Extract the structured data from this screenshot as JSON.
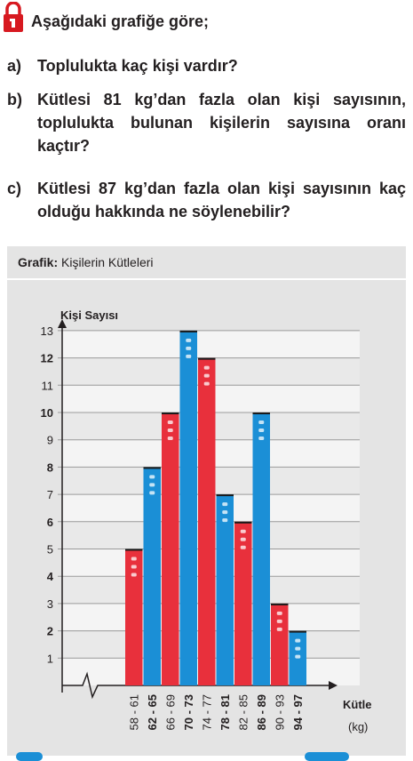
{
  "header": {
    "title": "Aşağıdaki grafiğe göre;",
    "icon": "lock-icon"
  },
  "questions": [
    {
      "label": "a)",
      "text": "Toplulukta kaç kişi vardır?"
    },
    {
      "label": "b)",
      "text": "Kütlesi 81 kg’dan fazla olan kişi sayısının, toplulukta bulunan kişilerin sayısına oranı kaçtır?"
    },
    {
      "label": "c)",
      "text": "Kütlesi 87 kg’dan fazla olan kişi sayısının kaç olduğu hakkında ne söylenebilir?"
    }
  ],
  "graph": {
    "prefix": "Grafik:",
    "caption": "Kişilerin Kütleleri"
  },
  "colors": {
    "red": "#e8303c",
    "blue": "#1b8fd6",
    "accent": "#d71920"
  },
  "chart_data": {
    "type": "bar",
    "ylabel": "Kişi Sayısı",
    "xlabel": "Kütle",
    "xunit": "(kg)",
    "ylim": [
      0,
      13
    ],
    "yticks": [
      1,
      2,
      3,
      4,
      5,
      6,
      7,
      8,
      9,
      10,
      11,
      12,
      13
    ],
    "categories": [
      "58 - 61",
      "62 - 65",
      "66 - 69",
      "70 - 73",
      "74 - 77",
      "78 - 81",
      "82 - 85",
      "86 - 89",
      "90 - 93",
      "94 - 97"
    ],
    "values": [
      5,
      8,
      10,
      13,
      12,
      7,
      6,
      10,
      3,
      2
    ],
    "bar_colors": [
      "red",
      "blue",
      "red",
      "blue",
      "red",
      "blue",
      "red",
      "blue",
      "red",
      "blue"
    ],
    "grid": true
  }
}
